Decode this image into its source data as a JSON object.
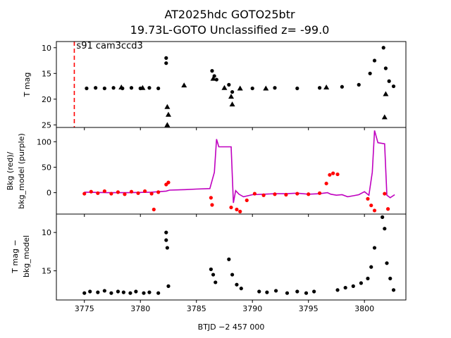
{
  "title_line1": "AT2025hdc  GOTO25btr",
  "title_line2": "19.73L-GOTO Unclassified z= -99.0",
  "chart_data": [
    {
      "type": "scatter",
      "panel": "top",
      "ylabel": "T mag",
      "y_inverted": true,
      "xlim": [
        3772.5,
        3803.7
      ],
      "ylim": [
        25.5,
        8.8
      ],
      "yticks": [
        10,
        15,
        20,
        25
      ],
      "annotation": "s91 cam3ccd3",
      "vline_x": 3774.1,
      "vline_color": "#ff0000",
      "series": [
        {
          "marker": "circle",
          "color": "#000000",
          "points": [
            [
              3775.2,
              17.9
            ],
            [
              3776.0,
              17.8
            ],
            [
              3776.8,
              17.9
            ],
            [
              3777.6,
              17.8
            ],
            [
              3778.4,
              17.9
            ],
            [
              3779.2,
              17.8
            ],
            [
              3780.0,
              17.9
            ],
            [
              3780.8,
              17.8
            ],
            [
              3781.6,
              17.9
            ],
            [
              3782.3,
              12.0
            ],
            [
              3782.3,
              13.0
            ],
            [
              3786.4,
              14.5
            ],
            [
              3786.6,
              15.5
            ],
            [
              3786.8,
              16.2
            ],
            [
              3787.9,
              17.2
            ],
            [
              3788.2,
              18.6
            ],
            [
              3790.0,
              17.9
            ],
            [
              3792.0,
              17.8
            ],
            [
              3794.0,
              17.9
            ],
            [
              3796.0,
              17.8
            ],
            [
              3798.0,
              17.6
            ],
            [
              3799.5,
              17.2
            ],
            [
              3800.5,
              15.0
            ],
            [
              3800.9,
              12.5
            ],
            [
              3801.7,
              10.0
            ],
            [
              3801.9,
              14.0
            ],
            [
              3802.2,
              16.5
            ],
            [
              3802.6,
              17.5
            ]
          ]
        },
        {
          "marker": "triangle",
          "color": "#000000",
          "points": [
            [
              3778.3,
              17.7
            ],
            [
              3780.2,
              17.8
            ],
            [
              3782.4,
              21.5
            ],
            [
              3782.5,
              23.0
            ],
            [
              3782.4,
              25.0
            ],
            [
              3783.9,
              17.3
            ],
            [
              3786.5,
              16.0
            ],
            [
              3787.5,
              17.8
            ],
            [
              3788.1,
              19.5
            ],
            [
              3788.2,
              21.0
            ],
            [
              3788.9,
              17.9
            ],
            [
              3791.2,
              17.9
            ],
            [
              3796.6,
              17.7
            ],
            [
              3801.8,
              23.5
            ],
            [
              3801.9,
              19.0
            ]
          ]
        }
      ]
    },
    {
      "type": "scatter",
      "panel": "middle",
      "ylabel": "Bkg (red)/\nbkg_model (purple)",
      "xlim": [
        3772.5,
        3803.7
      ],
      "ylim": [
        -42,
        128
      ],
      "yticks": [
        0,
        50,
        100
      ],
      "series": [
        {
          "name": "Bkg",
          "color": "#ff0000",
          "marker": "circle",
          "points": [
            [
              3775.0,
              -2
            ],
            [
              3775.6,
              2
            ],
            [
              3776.2,
              -1
            ],
            [
              3776.8,
              3
            ],
            [
              3777.4,
              -2
            ],
            [
              3778.0,
              1
            ],
            [
              3778.6,
              -3
            ],
            [
              3779.2,
              2
            ],
            [
              3779.8,
              -1
            ],
            [
              3780.4,
              3
            ],
            [
              3781.0,
              -2
            ],
            [
              3781.6,
              1
            ],
            [
              3782.3,
              16
            ],
            [
              3782.5,
              20
            ],
            [
              3781.2,
              -33
            ],
            [
              3786.3,
              -10
            ],
            [
              3786.4,
              -24
            ],
            [
              3788.1,
              -29
            ],
            [
              3788.6,
              -33
            ],
            [
              3788.9,
              -37
            ],
            [
              3789.5,
              -15
            ],
            [
              3790.2,
              -2
            ],
            [
              3791.0,
              -5
            ],
            [
              3792.0,
              -3
            ],
            [
              3793.0,
              -4
            ],
            [
              3794.0,
              -2
            ],
            [
              3795.0,
              -3
            ],
            [
              3796.0,
              -1
            ],
            [
              3796.6,
              18
            ],
            [
              3796.9,
              35
            ],
            [
              3797.2,
              38
            ],
            [
              3797.6,
              36
            ],
            [
              3800.3,
              -12
            ],
            [
              3800.6,
              -25
            ],
            [
              3800.9,
              -35
            ],
            [
              3801.8,
              -2
            ],
            [
              3802.1,
              -32
            ]
          ]
        }
      ],
      "model_line": {
        "name": "bkg_model",
        "color": "#bf00bf",
        "points": [
          [
            3775.0,
            1
          ],
          [
            3777.0,
            0
          ],
          [
            3779.0,
            0
          ],
          [
            3781.0,
            1
          ],
          [
            3782.3,
            3
          ],
          [
            3782.6,
            5
          ],
          [
            3784.0,
            6
          ],
          [
            3785.0,
            7
          ],
          [
            3786.2,
            8
          ],
          [
            3786.6,
            40
          ],
          [
            3786.8,
            105
          ],
          [
            3787.0,
            90
          ],
          [
            3788.1,
            90
          ],
          [
            3788.3,
            -20
          ],
          [
            3788.5,
            4
          ],
          [
            3788.8,
            -3
          ],
          [
            3789.2,
            -8
          ],
          [
            3790.0,
            -4
          ],
          [
            3791.0,
            -3
          ],
          [
            3792.0,
            -2
          ],
          [
            3793.0,
            -2
          ],
          [
            3794.0,
            -1
          ],
          [
            3795.0,
            -3
          ],
          [
            3796.0,
            -2
          ],
          [
            3796.7,
            0
          ],
          [
            3797.0,
            -3
          ],
          [
            3797.5,
            -5
          ],
          [
            3798.0,
            -4
          ],
          [
            3798.5,
            -8
          ],
          [
            3799.0,
            -6
          ],
          [
            3799.5,
            -4
          ],
          [
            3800.0,
            2
          ],
          [
            3800.4,
            -5
          ],
          [
            3800.7,
            40
          ],
          [
            3800.9,
            122
          ],
          [
            3801.2,
            98
          ],
          [
            3801.8,
            96
          ],
          [
            3802.0,
            -5
          ],
          [
            3802.3,
            -10
          ],
          [
            3802.7,
            -4
          ]
        ]
      }
    },
    {
      "type": "scatter",
      "panel": "bottom",
      "ylabel": "T mag −\nbkg_model",
      "xlabel": "BTJD −2 457 000",
      "y_inverted": true,
      "xlim": [
        3772.5,
        3803.7
      ],
      "ylim": [
        18.8,
        7.6
      ],
      "yticks": [
        10,
        15
      ],
      "xticks": [
        3775,
        3780,
        3785,
        3790,
        3795,
        3800
      ],
      "series": [
        {
          "marker": "circle",
          "color": "#000000",
          "points": [
            [
              3775.0,
              17.9
            ],
            [
              3775.5,
              17.7
            ],
            [
              3776.2,
              17.8
            ],
            [
              3776.8,
              17.6
            ],
            [
              3777.4,
              17.9
            ],
            [
              3778.0,
              17.7
            ],
            [
              3778.5,
              17.8
            ],
            [
              3779.1,
              17.9
            ],
            [
              3779.6,
              17.7
            ],
            [
              3780.3,
              17.9
            ],
            [
              3780.8,
              17.8
            ],
            [
              3781.6,
              17.9
            ],
            [
              3782.3,
              10.0
            ],
            [
              3782.3,
              11.0
            ],
            [
              3782.4,
              12.0
            ],
            [
              3782.5,
              17.0
            ],
            [
              3786.3,
              14.8
            ],
            [
              3786.5,
              15.5
            ],
            [
              3786.7,
              16.5
            ],
            [
              3787.9,
              13.5
            ],
            [
              3788.2,
              15.5
            ],
            [
              3788.6,
              16.8
            ],
            [
              3789.0,
              17.3
            ],
            [
              3790.6,
              17.7
            ],
            [
              3791.3,
              17.8
            ],
            [
              3792.1,
              17.6
            ],
            [
              3793.1,
              17.9
            ],
            [
              3794.0,
              17.7
            ],
            [
              3794.8,
              17.9
            ],
            [
              3795.5,
              17.7
            ],
            [
              3797.6,
              17.5
            ],
            [
              3798.3,
              17.2
            ],
            [
              3799.0,
              17.0
            ],
            [
              3799.7,
              16.6
            ],
            [
              3800.3,
              16.0
            ],
            [
              3800.6,
              14.5
            ],
            [
              3800.9,
              12.0
            ],
            [
              3801.6,
              8.0
            ],
            [
              3801.8,
              9.5
            ],
            [
              3802.0,
              14.0
            ],
            [
              3802.3,
              16.0
            ],
            [
              3802.6,
              17.5
            ]
          ]
        }
      ]
    }
  ]
}
